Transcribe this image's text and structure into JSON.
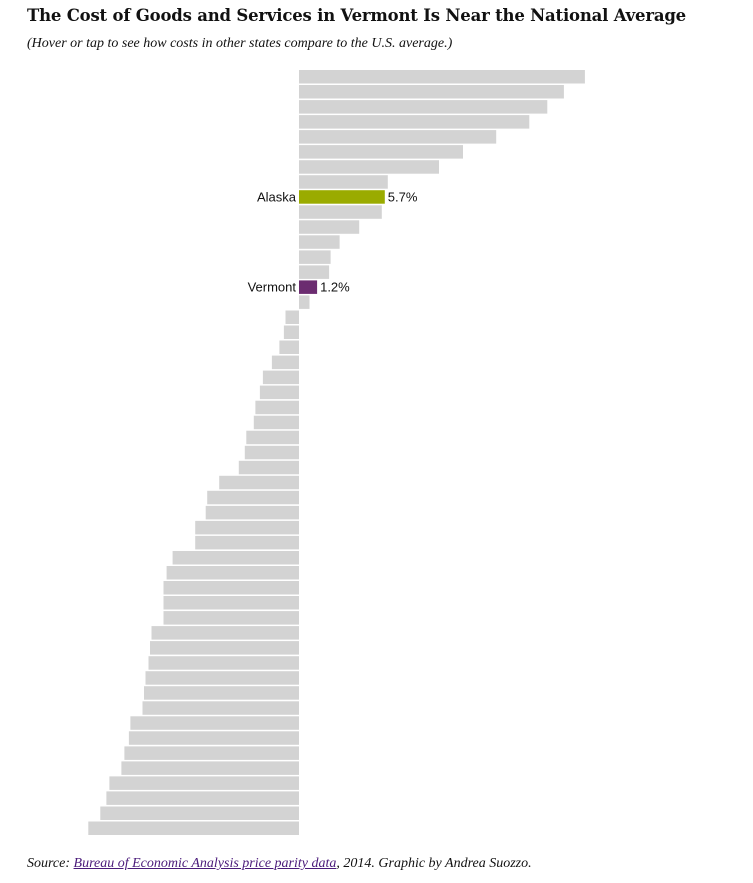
{
  "header": {
    "title": "The Cost of Goods and Services in Vermont Is Near the National Average",
    "subtitle": "(Hover or tap to see how costs in other states compare to the U.S. average.)"
  },
  "footer": {
    "prefix": "Source: ",
    "link_text": "Bureau of Economic Analysis price parity data",
    "suffix": ", 2014. Graphic by Andrea Suozzo."
  },
  "colors": {
    "default_bar": "#d3d3d3",
    "alaska_bar": "#9aab00",
    "vermont_bar": "#6b2c70"
  },
  "chart_data": {
    "type": "bar",
    "orientation": "horizontal",
    "value_unit": "percent difference from U.S. average",
    "values": [
      19.0,
      17.6,
      16.5,
      15.3,
      13.1,
      10.9,
      9.3,
      5.9,
      5.7,
      5.5,
      4.0,
      2.7,
      2.1,
      2.0,
      1.2,
      0.7,
      -0.9,
      -1.0,
      -1.3,
      -1.8,
      -2.4,
      -2.6,
      -2.9,
      -3.0,
      -3.5,
      -3.6,
      -4.0,
      -5.3,
      -6.1,
      -6.2,
      -6.9,
      -6.9,
      -8.4,
      -8.8,
      -9.0,
      -9.0,
      -9.0,
      -9.8,
      -9.9,
      -10.0,
      -10.2,
      -10.3,
      -10.4,
      -11.2,
      -11.3,
      -11.6,
      -11.8,
      -12.6,
      -12.8,
      -13.2,
      -14.0
    ],
    "highlighted": [
      {
        "label": "Alaska",
        "value_label": "5.7%",
        "index": 8,
        "color_key": "alaska_bar"
      },
      {
        "label": "Vermont",
        "value_label": "1.2%",
        "index": 14,
        "color_key": "vermont_bar"
      }
    ]
  }
}
